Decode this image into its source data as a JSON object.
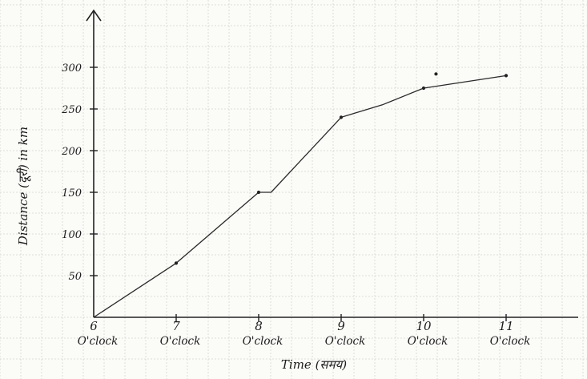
{
  "chart_data": {
    "type": "line",
    "title": "",
    "xlabel": "Time (समय)",
    "ylabel": "Distance (दूरी) in km",
    "x_categories": [
      "6",
      "7",
      "8",
      "9",
      "10",
      "11"
    ],
    "x_sublabels": [
      "O'clock",
      "O'clock",
      "O'clock",
      "O'clock",
      "O'clock",
      "O'clock"
    ],
    "y_ticks": [
      50,
      100,
      150,
      200,
      250,
      300
    ],
    "xlim": [
      6,
      11
    ],
    "ylim": [
      0,
      320
    ],
    "grid": true,
    "series": [
      {
        "x": [
          6,
          7,
          8,
          8.15,
          9,
          9.5,
          10,
          11
        ],
        "y": [
          0,
          65,
          150,
          150,
          240,
          255,
          275,
          290
        ]
      }
    ],
    "markers": {
      "x": [
        7,
        8,
        9,
        10,
        10.15,
        11
      ],
      "y": [
        65,
        150,
        240,
        275,
        292,
        290
      ]
    }
  }
}
